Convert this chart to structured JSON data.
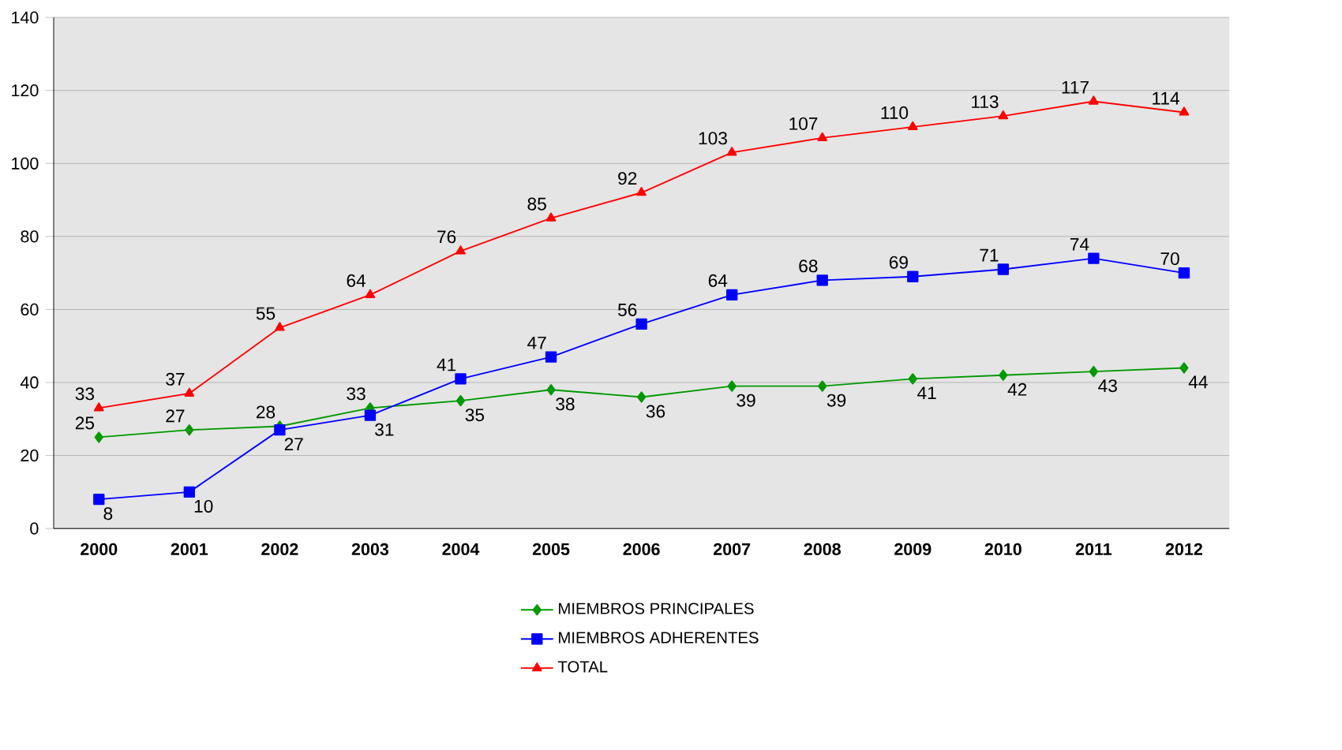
{
  "chart_data": {
    "type": "line",
    "categories": [
      "2000",
      "2001",
      "2002",
      "2003",
      "2004",
      "2005",
      "2006",
      "2007",
      "2008",
      "2009",
      "2010",
      "2011",
      "2012"
    ],
    "series": [
      {
        "name": "MIEMBROS PRINCIPALES",
        "color": "#009900",
        "marker": "diamond",
        "values": [
          25,
          27,
          28,
          33,
          35,
          38,
          36,
          39,
          39,
          41,
          42,
          43,
          44
        ]
      },
      {
        "name": "MIEMBROS ADHERENTES",
        "color": "#0000ff",
        "marker": "square",
        "values": [
          8,
          10,
          27,
          31,
          41,
          47,
          56,
          64,
          68,
          69,
          71,
          74,
          70
        ]
      },
      {
        "name": "TOTAL",
        "color": "#ff0000",
        "marker": "triangle",
        "values": [
          33,
          37,
          55,
          64,
          76,
          85,
          92,
          103,
          107,
          110,
          113,
          117,
          114
        ]
      }
    ],
    "ylim": [
      0,
      140
    ],
    "yticks": [
      0,
      20,
      40,
      60,
      80,
      100,
      120,
      140
    ],
    "grid": "y",
    "legend": "bottom",
    "data_labels": true
  }
}
